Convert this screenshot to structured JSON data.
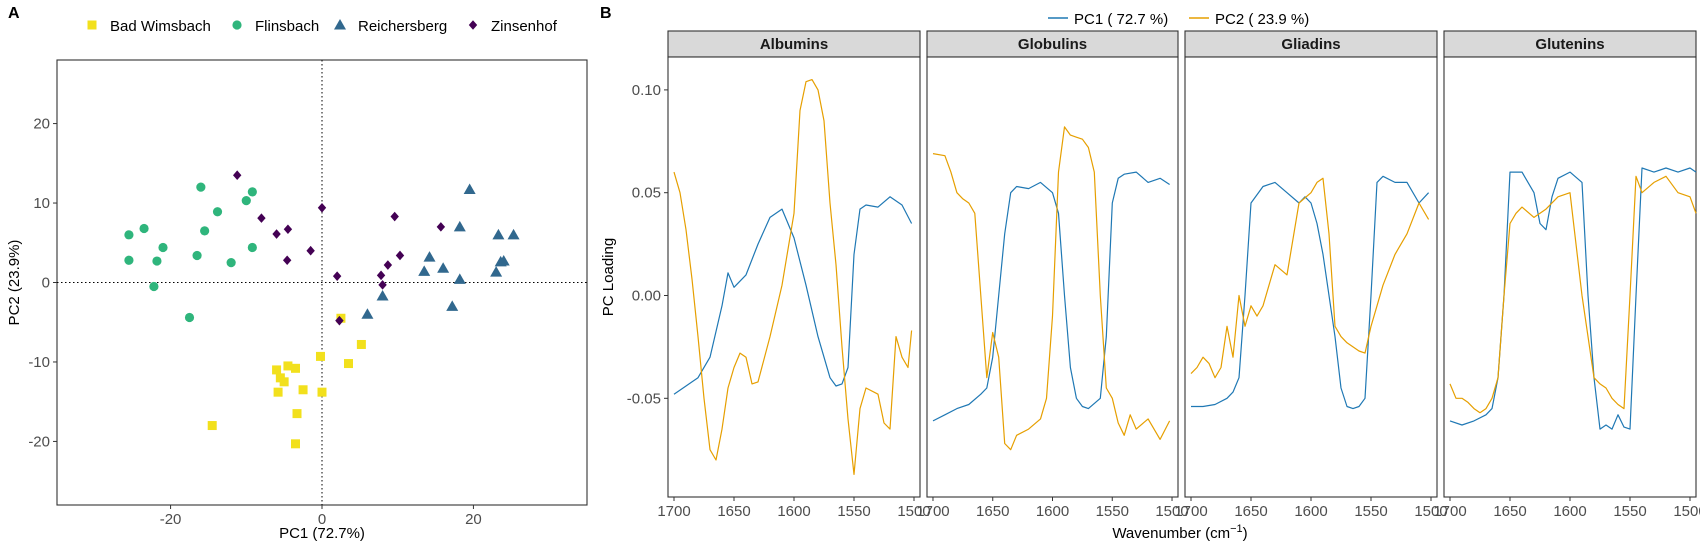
{
  "panel_a": {
    "tag": "A",
    "xlabel": "PC1 (72.7%)",
    "ylabel": "PC2 (23.9%)",
    "legend": [
      {
        "label": "Bad Wimsbach",
        "shape": "square",
        "color": "#F2E01C"
      },
      {
        "label": "Flinsbach",
        "shape": "circle",
        "color": "#2FB57C"
      },
      {
        "label": "Reichersberg",
        "shape": "triangle",
        "color": "#31688E"
      },
      {
        "label": "Zinsenhof",
        "shape": "diamond",
        "color": "#440154"
      }
    ]
  },
  "panel_b": {
    "tag": "B",
    "ylabel": "PC Loading",
    "xlabel_main": "Wavenumber (cm",
    "xlabel_sup": "−1",
    "xlabel_end": ")",
    "legend": [
      {
        "label": "PC1 ( 72.7 %)",
        "color": "#1F78B4"
      },
      {
        "label": "PC2 ( 23.9 %)",
        "color": "#E69F00"
      }
    ],
    "facets": [
      "Albumins",
      "Globulins",
      "Gliadins",
      "Glutenins"
    ]
  },
  "chart_data": [
    {
      "type": "scatter",
      "title": "",
      "xlabel": "PC1 (72.7%)",
      "ylabel": "PC2 (23.9%)",
      "xlim": [
        -35,
        35
      ],
      "ylim": [
        -28,
        28
      ],
      "xticks": [
        -20,
        0,
        20
      ],
      "yticks": [
        -20,
        -10,
        0,
        10,
        20
      ],
      "grid": false,
      "reference_lines": {
        "x": 0,
        "y": 0,
        "style": "dotted"
      },
      "legend_position": "top",
      "series": [
        {
          "name": "Bad Wimsbach",
          "marker": "square",
          "color": "#F2E01C",
          "points": [
            [
              -14.5,
              -18
            ],
            [
              -6,
              -11
            ],
            [
              -5.5,
              -12
            ],
            [
              -4.5,
              -10.5
            ],
            [
              -3.5,
              -10.8
            ],
            [
              -5,
              -12.5
            ],
            [
              -5.8,
              -13.8
            ],
            [
              -2.5,
              -13.5
            ],
            [
              0,
              -13.8
            ],
            [
              -3.3,
              -16.5
            ],
            [
              -3.5,
              -20.3
            ],
            [
              -0.2,
              -9.3
            ],
            [
              2.5,
              -4.5
            ],
            [
              3.5,
              -10.2
            ],
            [
              5.2,
              -7.8
            ]
          ]
        },
        {
          "name": "Flinsbach",
          "marker": "circle",
          "color": "#2FB57C",
          "points": [
            [
              -25.5,
              6
            ],
            [
              -25.5,
              2.8
            ],
            [
              -23.5,
              6.8
            ],
            [
              -21,
              4.4
            ],
            [
              -21.8,
              2.7
            ],
            [
              -22.2,
              -0.5
            ],
            [
              -17.5,
              -4.4
            ],
            [
              -16,
              12
            ],
            [
              -16.5,
              3.4
            ],
            [
              -15.5,
              6.5
            ],
            [
              -13.8,
              8.9
            ],
            [
              -12,
              2.5
            ],
            [
              -10,
              10.3
            ],
            [
              -9.2,
              11.4
            ],
            [
              -9.2,
              4.4
            ]
          ]
        },
        {
          "name": "Reichersberg",
          "marker": "triangle",
          "color": "#31688E",
          "points": [
            [
              6,
              -4
            ],
            [
              8,
              -1.7
            ],
            [
              13.5,
              1.4
            ],
            [
              14.2,
              3.2
            ],
            [
              16,
              1.8
            ],
            [
              17.2,
              -3
            ],
            [
              18.2,
              7
            ],
            [
              18.2,
              0.4
            ],
            [
              19.5,
              11.7
            ],
            [
              23,
              1.3
            ],
            [
              23.3,
              6
            ],
            [
              23.6,
              2.6
            ],
            [
              24,
              2.7
            ],
            [
              25.3,
              6
            ]
          ]
        },
        {
          "name": "Zinsenhof",
          "marker": "diamond",
          "color": "#440154",
          "points": [
            [
              -11.2,
              13.5
            ],
            [
              -8,
              8.1
            ],
            [
              -6,
              6.1
            ],
            [
              -4.5,
              6.7
            ],
            [
              -4.6,
              2.8
            ],
            [
              -1.5,
              4
            ],
            [
              0,
              9.4
            ],
            [
              2,
              0.8
            ],
            [
              2.3,
              -4.8
            ],
            [
              7.8,
              0.9
            ],
            [
              8,
              -0.3
            ],
            [
              8.7,
              2.2
            ],
            [
              9.6,
              8.3
            ],
            [
              10.3,
              3.4
            ],
            [
              15.7,
              7
            ]
          ]
        }
      ]
    },
    {
      "type": "line",
      "title": "",
      "xlabel": "Wavenumber (cm−1)",
      "ylabel": "PC Loading",
      "xlim": [
        1705,
        1495
      ],
      "ylim": [
        -0.098,
        0.116
      ],
      "xticks": [
        1700,
        1650,
        1600,
        1550,
        1500
      ],
      "yticks": [
        -0.05,
        0.0,
        0.05,
        0.1
      ],
      "ytick_labels": [
        "-0.05",
        "0.00",
        "0.05",
        "0.10"
      ],
      "facets": [
        {
          "name": "Albumins",
          "series": [
            {
              "name": "PC1 ( 72.7 %)",
              "color": "#1F78B4",
              "x": [
                1700,
                1690,
                1680,
                1670,
                1660,
                1655,
                1650,
                1640,
                1630,
                1620,
                1610,
                1600,
                1590,
                1580,
                1570,
                1565,
                1560,
                1555,
                1550,
                1545,
                1540,
                1530,
                1520,
                1510,
                1502
              ],
              "y": [
                -0.048,
                -0.044,
                -0.04,
                -0.03,
                -0.005,
                0.011,
                0.004,
                0.01,
                0.025,
                0.038,
                0.042,
                0.028,
                0.005,
                -0.02,
                -0.04,
                -0.044,
                -0.043,
                -0.035,
                0.02,
                0.042,
                0.044,
                0.043,
                0.048,
                0.044,
                0.035
              ]
            },
            {
              "name": "PC2 ( 23.9 %)",
              "color": "#E69F00",
              "x": [
                1700,
                1695,
                1690,
                1685,
                1680,
                1675,
                1670,
                1665,
                1660,
                1655,
                1650,
                1645,
                1640,
                1635,
                1630,
                1620,
                1610,
                1600,
                1595,
                1590,
                1585,
                1580,
                1575,
                1570,
                1565,
                1560,
                1555,
                1550,
                1545,
                1540,
                1530,
                1525,
                1520,
                1515,
                1510,
                1505,
                1502
              ],
              "y": [
                0.06,
                0.05,
                0.032,
                0.008,
                -0.02,
                -0.05,
                -0.075,
                -0.08,
                -0.065,
                -0.045,
                -0.035,
                -0.028,
                -0.03,
                -0.043,
                -0.042,
                -0.02,
                0.005,
                0.04,
                0.09,
                0.104,
                0.105,
                0.1,
                0.085,
                0.045,
                0.015,
                -0.025,
                -0.06,
                -0.087,
                -0.055,
                -0.045,
                -0.048,
                -0.062,
                -0.065,
                -0.02,
                -0.03,
                -0.035,
                -0.017
              ]
            }
          ]
        },
        {
          "name": "Globulins",
          "series": [
            {
              "name": "PC1 ( 72.7 %)",
              "color": "#1F78B4",
              "x": [
                1700,
                1690,
                1680,
                1670,
                1660,
                1655,
                1650,
                1645,
                1640,
                1635,
                1630,
                1620,
                1610,
                1600,
                1595,
                1590,
                1585,
                1580,
                1575,
                1570,
                1560,
                1555,
                1550,
                1545,
                1540,
                1530,
                1520,
                1510,
                1502
              ],
              "y": [
                -0.061,
                -0.058,
                -0.055,
                -0.053,
                -0.048,
                -0.045,
                -0.03,
                0.0,
                0.03,
                0.05,
                0.053,
                0.052,
                0.055,
                0.05,
                0.04,
                0.0,
                -0.035,
                -0.05,
                -0.054,
                -0.055,
                -0.05,
                -0.02,
                0.045,
                0.057,
                0.059,
                0.06,
                0.055,
                0.057,
                0.054
              ]
            },
            {
              "name": "PC2 ( 23.9 %)",
              "color": "#E69F00",
              "x": [
                1700,
                1690,
                1685,
                1680,
                1675,
                1670,
                1665,
                1660,
                1655,
                1650,
                1645,
                1640,
                1635,
                1630,
                1620,
                1610,
                1605,
                1600,
                1595,
                1590,
                1585,
                1580,
                1575,
                1570,
                1565,
                1560,
                1555,
                1550,
                1545,
                1540,
                1535,
                1530,
                1520,
                1510,
                1502
              ],
              "y": [
                0.069,
                0.068,
                0.06,
                0.05,
                0.047,
                0.045,
                0.04,
                0.0,
                -0.04,
                -0.018,
                -0.03,
                -0.072,
                -0.075,
                -0.068,
                -0.065,
                -0.06,
                -0.05,
                -0.01,
                0.06,
                0.082,
                0.078,
                0.077,
                0.076,
                0.072,
                0.06,
                0.0,
                -0.045,
                -0.05,
                -0.062,
                -0.068,
                -0.058,
                -0.065,
                -0.06,
                -0.07,
                -0.061
              ]
            }
          ]
        },
        {
          "name": "Gliadins",
          "series": [
            {
              "name": "PC1 ( 72.7 %)",
              "color": "#1F78B4",
              "x": [
                1700,
                1690,
                1680,
                1670,
                1665,
                1660,
                1655,
                1650,
                1640,
                1630,
                1620,
                1610,
                1605,
                1600,
                1595,
                1590,
                1580,
                1575,
                1570,
                1565,
                1560,
                1555,
                1550,
                1545,
                1540,
                1530,
                1520,
                1510,
                1502
              ],
              "y": [
                -0.054,
                -0.054,
                -0.053,
                -0.05,
                -0.047,
                -0.04,
                0.0,
                0.045,
                0.053,
                0.055,
                0.05,
                0.045,
                0.048,
                0.045,
                0.035,
                0.02,
                -0.02,
                -0.045,
                -0.054,
                -0.055,
                -0.054,
                -0.05,
                0.0,
                0.055,
                0.058,
                0.055,
                0.055,
                0.045,
                0.05
              ]
            },
            {
              "name": "PC2 ( 23.9 %)",
              "color": "#E69F00",
              "x": [
                1700,
                1695,
                1690,
                1685,
                1680,
                1675,
                1670,
                1665,
                1660,
                1655,
                1650,
                1645,
                1640,
                1635,
                1630,
                1620,
                1610,
                1600,
                1595,
                1590,
                1585,
                1580,
                1575,
                1570,
                1565,
                1560,
                1555,
                1550,
                1545,
                1540,
                1530,
                1520,
                1510,
                1502
              ],
              "y": [
                -0.038,
                -0.035,
                -0.03,
                -0.033,
                -0.04,
                -0.035,
                -0.015,
                -0.03,
                0.0,
                -0.015,
                -0.005,
                -0.01,
                -0.005,
                0.005,
                0.015,
                0.01,
                0.045,
                0.05,
                0.055,
                0.057,
                0.03,
                -0.015,
                -0.02,
                -0.023,
                -0.025,
                -0.027,
                -0.028,
                -0.015,
                -0.005,
                0.005,
                0.02,
                0.03,
                0.045,
                0.037
              ]
            }
          ]
        },
        {
          "name": "Glutenins",
          "series": [
            {
              "name": "PC1 ( 72.7 %)",
              "color": "#1F78B4",
              "x": [
                1700,
                1690,
                1680,
                1670,
                1665,
                1660,
                1655,
                1650,
                1640,
                1630,
                1625,
                1620,
                1615,
                1610,
                1600,
                1590,
                1585,
                1580,
                1575,
                1570,
                1565,
                1560,
                1555,
                1550,
                1545,
                1540,
                1530,
                1520,
                1510,
                1500,
                1495
              ],
              "y": [
                -0.061,
                -0.063,
                -0.061,
                -0.058,
                -0.055,
                -0.04,
                0.0,
                0.06,
                0.06,
                0.05,
                0.035,
                0.032,
                0.048,
                0.057,
                0.06,
                0.055,
                0.0,
                -0.04,
                -0.065,
                -0.063,
                -0.065,
                -0.058,
                -0.064,
                -0.065,
                0.0,
                0.062,
                0.06,
                0.062,
                0.06,
                0.062,
                0.06
              ]
            },
            {
              "name": "PC2 ( 23.9 %)",
              "color": "#E69F00",
              "x": [
                1700,
                1695,
                1690,
                1685,
                1680,
                1675,
                1670,
                1665,
                1660,
                1655,
                1650,
                1645,
                1640,
                1630,
                1620,
                1610,
                1600,
                1590,
                1585,
                1580,
                1575,
                1570,
                1565,
                1560,
                1555,
                1550,
                1545,
                1540,
                1530,
                1520,
                1510,
                1500,
                1495
              ],
              "y": [
                -0.043,
                -0.05,
                -0.05,
                -0.052,
                -0.055,
                -0.057,
                -0.055,
                -0.05,
                -0.04,
                0.0,
                0.035,
                0.04,
                0.043,
                0.038,
                0.042,
                0.048,
                0.05,
                0.0,
                -0.02,
                -0.04,
                -0.043,
                -0.045,
                -0.05,
                -0.053,
                -0.055,
                0.0,
                0.058,
                0.05,
                0.055,
                0.058,
                0.05,
                0.048,
                0.04
              ]
            }
          ]
        }
      ]
    }
  ]
}
